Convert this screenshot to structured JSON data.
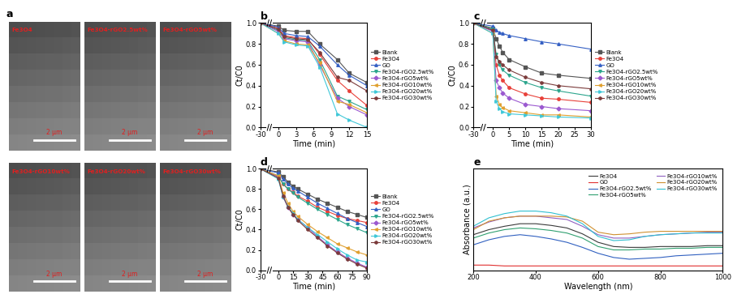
{
  "images": {
    "label": "a",
    "tiles": [
      {
        "label": "Fe3O4",
        "scale_bar": "2 μm"
      },
      {
        "label": "Fe3O4-rGO2.5wt%",
        "scale_bar": "2 μm"
      },
      {
        "label": "Fe3O4-rGO5wt%",
        "scale_bar": "2 μm"
      },
      {
        "label": "Fe3O4-rGO10wt%",
        "scale_bar": "2 μm"
      },
      {
        "label": "Fe3O4-rGO20wt%",
        "scale_bar": "2 μm"
      },
      {
        "label": "Fe3O4-rGO30wt%",
        "scale_bar": "2 μm"
      }
    ]
  },
  "chart_data": [
    {
      "type": "line",
      "title": "b",
      "x_label": "Time (min)",
      "y_label": "Ct/C0",
      "x": [
        -30,
        0,
        1,
        3,
        5,
        7,
        10,
        12,
        15
      ],
      "xlim": [
        -30,
        15
      ],
      "xticks": [
        -30,
        0,
        3,
        6,
        9,
        12,
        15
      ],
      "ylim": [
        0.0,
        1.0
      ],
      "yticks": [
        0.0,
        0.2,
        0.4,
        0.6,
        0.8,
        1.0
      ],
      "legend": "right",
      "series": [
        {
          "name": "Blank",
          "color": "#555555",
          "marker": "square",
          "values": [
            1.0,
            0.97,
            0.93,
            0.92,
            0.92,
            0.8,
            0.65,
            0.52,
            0.43
          ]
        },
        {
          "name": "Fe3O4",
          "color": "#e8413a",
          "marker": "circle",
          "values": [
            1.0,
            0.95,
            0.88,
            0.86,
            0.85,
            0.7,
            0.45,
            0.35,
            0.21
          ]
        },
        {
          "name": "GO",
          "color": "#3560c4",
          "marker": "triangle_up",
          "values": [
            1.0,
            0.96,
            0.9,
            0.88,
            0.87,
            0.78,
            0.6,
            0.5,
            0.4
          ]
        },
        {
          "name": "Fe3O4-rGO2.5wt%",
          "color": "#2ca58d",
          "marker": "triangle_down",
          "values": [
            1.0,
            0.93,
            0.86,
            0.84,
            0.83,
            0.65,
            0.3,
            0.25,
            0.17
          ]
        },
        {
          "name": "Fe3O4-rGO5wt%",
          "color": "#9b59d0",
          "marker": "diamond",
          "values": [
            1.0,
            0.92,
            0.85,
            0.83,
            0.82,
            0.6,
            0.28,
            0.2,
            0.12
          ]
        },
        {
          "name": "Fe3O4-rGO10wt%",
          "color": "#e0a030",
          "marker": "triangle_left",
          "values": [
            1.0,
            0.9,
            0.83,
            0.8,
            0.79,
            0.62,
            0.25,
            0.22,
            0.14
          ]
        },
        {
          "name": "Fe3O4-rGO20wt%",
          "color": "#40c8d8",
          "marker": "triangle_right",
          "values": [
            1.0,
            0.9,
            0.82,
            0.79,
            0.78,
            0.58,
            0.13,
            0.07,
            0.0
          ]
        },
        {
          "name": "Fe3O4-rGO30wt%",
          "color": "#7b3b3b",
          "marker": "hexagon",
          "values": [
            1.0,
            0.94,
            0.87,
            0.85,
            0.84,
            0.72,
            0.48,
            0.45,
            0.35
          ]
        }
      ]
    },
    {
      "type": "line",
      "title": "c",
      "x_label": "Time (min)",
      "y_label": "Ct/C0",
      "x": [
        -30,
        0,
        1,
        2,
        3,
        5,
        10,
        15,
        20,
        30
      ],
      "xlim": [
        -30,
        30
      ],
      "xticks": [
        -30,
        0,
        5,
        10,
        15,
        20,
        25,
        30
      ],
      "ylim": [
        0.0,
        1.0
      ],
      "yticks": [
        0.0,
        0.2,
        0.4,
        0.6,
        0.8,
        1.0
      ],
      "legend": "right",
      "series": [
        {
          "name": "Blank",
          "color": "#555555",
          "marker": "square",
          "values": [
            1.0,
            0.95,
            0.85,
            0.78,
            0.72,
            0.65,
            0.58,
            0.52,
            0.5,
            0.47
          ]
        },
        {
          "name": "Fe3O4",
          "color": "#e8413a",
          "marker": "circle",
          "values": [
            1.0,
            0.93,
            0.6,
            0.5,
            0.45,
            0.38,
            0.32,
            0.28,
            0.27,
            0.24
          ]
        },
        {
          "name": "GO",
          "color": "#3560c4",
          "marker": "triangle_up",
          "values": [
            1.0,
            0.97,
            0.93,
            0.91,
            0.9,
            0.88,
            0.85,
            0.82,
            0.8,
            0.75
          ]
        },
        {
          "name": "Fe3O4-rGO2.5wt%",
          "color": "#2ca58d",
          "marker": "triangle_down",
          "values": [
            1.0,
            0.94,
            0.7,
            0.6,
            0.55,
            0.5,
            0.43,
            0.38,
            0.35,
            0.3
          ]
        },
        {
          "name": "Fe3O4-rGO5wt%",
          "color": "#9b59d0",
          "marker": "diamond",
          "values": [
            1.0,
            0.92,
            0.45,
            0.38,
            0.33,
            0.28,
            0.22,
            0.2,
            0.18,
            0.16
          ]
        },
        {
          "name": "Fe3O4-rGO10wt%",
          "color": "#e0a030",
          "marker": "triangle_left",
          "values": [
            1.0,
            0.9,
            0.3,
            0.22,
            0.19,
            0.16,
            0.14,
            0.12,
            0.12,
            0.1
          ]
        },
        {
          "name": "Fe3O4-rGO20wt%",
          "color": "#40c8d8",
          "marker": "triangle_right",
          "values": [
            1.0,
            0.9,
            0.25,
            0.18,
            0.15,
            0.13,
            0.12,
            0.11,
            0.1,
            0.09
          ]
        },
        {
          "name": "Fe3O4-rGO30wt%",
          "color": "#7b3b3b",
          "marker": "hexagon",
          "values": [
            1.0,
            0.93,
            0.68,
            0.63,
            0.6,
            0.55,
            0.48,
            0.43,
            0.4,
            0.37
          ]
        }
      ]
    },
    {
      "type": "line",
      "title": "d",
      "x_label": "Time (min)",
      "y_label": "Ct/C0",
      "x": [
        -30,
        0,
        5,
        10,
        15,
        20,
        30,
        40,
        50,
        60,
        70,
        80,
        90
      ],
      "xlim": [
        -30,
        90
      ],
      "xticks": [
        -30,
        0,
        15,
        30,
        45,
        60,
        75,
        90
      ],
      "ylim": [
        0.0,
        1.0
      ],
      "yticks": [
        0.0,
        0.2,
        0.4,
        0.6,
        0.8,
        1.0
      ],
      "legend": "right",
      "series": [
        {
          "name": "Blank",
          "color": "#555555",
          "marker": "square",
          "values": [
            1.0,
            0.97,
            0.92,
            0.87,
            0.83,
            0.8,
            0.75,
            0.7,
            0.66,
            0.62,
            0.58,
            0.55,
            0.52
          ]
        },
        {
          "name": "Fe3O4",
          "color": "#e8413a",
          "marker": "circle",
          "values": [
            1.0,
            0.93,
            0.85,
            0.8,
            0.77,
            0.73,
            0.68,
            0.62,
            0.58,
            0.54,
            0.51,
            0.49,
            0.47
          ]
        },
        {
          "name": "GO",
          "color": "#3560c4",
          "marker": "triangle_up",
          "values": [
            1.0,
            0.96,
            0.9,
            0.85,
            0.81,
            0.78,
            0.72,
            0.66,
            0.61,
            0.56,
            0.51,
            0.47,
            0.43
          ]
        },
        {
          "name": "Fe3O4-rGO2.5wt%",
          "color": "#2ca58d",
          "marker": "triangle_down",
          "values": [
            1.0,
            0.93,
            0.85,
            0.8,
            0.76,
            0.72,
            0.66,
            0.6,
            0.55,
            0.5,
            0.45,
            0.41,
            0.37
          ]
        },
        {
          "name": "Fe3O4-rGO5wt%",
          "color": "#9b59d0",
          "marker": "diamond",
          "values": [
            1.0,
            0.92,
            0.72,
            0.62,
            0.55,
            0.5,
            0.42,
            0.33,
            0.25,
            0.18,
            0.12,
            0.07,
            0.03
          ]
        },
        {
          "name": "Fe3O4-rGO10wt%",
          "color": "#e0a030",
          "marker": "triangle_left",
          "values": [
            1.0,
            0.93,
            0.76,
            0.66,
            0.58,
            0.53,
            0.45,
            0.38,
            0.32,
            0.26,
            0.22,
            0.18,
            0.15
          ]
        },
        {
          "name": "Fe3O4-rGO20wt%",
          "color": "#40c8d8",
          "marker": "triangle_right",
          "values": [
            1.0,
            0.9,
            0.72,
            0.63,
            0.56,
            0.5,
            0.42,
            0.35,
            0.28,
            0.21,
            0.15,
            0.1,
            0.08
          ]
        },
        {
          "name": "Fe3O4-rGO30wt%",
          "color": "#7b3b3b",
          "marker": "hexagon",
          "values": [
            1.0,
            0.91,
            0.73,
            0.62,
            0.55,
            0.49,
            0.4,
            0.32,
            0.24,
            0.17,
            0.11,
            0.06,
            0.02
          ]
        }
      ]
    },
    {
      "type": "line",
      "title": "e",
      "x_label": "Wavelength (nm)",
      "y_label": "Absorbance (a.u.)",
      "x": [
        200,
        250,
        300,
        350,
        400,
        450,
        500,
        550,
        600,
        650,
        700,
        750,
        800,
        850,
        900,
        950,
        1000
      ],
      "xlim": [
        200,
        1000
      ],
      "xticks": [
        200,
        400,
        600,
        800,
        1000
      ],
      "ylim": [
        0,
        1.2
      ],
      "tick_labels": "x",
      "legend": "upper right",
      "series": [
        {
          "name": "Fe3O4",
          "color": "#3a3a3a",
          "values": [
            0.42,
            0.48,
            0.52,
            0.55,
            0.55,
            0.53,
            0.5,
            0.43,
            0.33,
            0.28,
            0.27,
            0.27,
            0.28,
            0.28,
            0.28,
            0.29,
            0.29
          ]
        },
        {
          "name": "GO",
          "color": "#e03030",
          "values": [
            0.06,
            0.06,
            0.05,
            0.05,
            0.05,
            0.05,
            0.05,
            0.05,
            0.05,
            0.05,
            0.05,
            0.05,
            0.05,
            0.05,
            0.05,
            0.05,
            0.05
          ]
        },
        {
          "name": "Fe3O4-rGO2.5wt%",
          "color": "#3060c0",
          "values": [
            0.3,
            0.36,
            0.4,
            0.42,
            0.4,
            0.37,
            0.33,
            0.27,
            0.2,
            0.15,
            0.13,
            0.14,
            0.15,
            0.17,
            0.18,
            0.19,
            0.2
          ]
        },
        {
          "name": "Fe3O4-rGO5wt%",
          "color": "#30a070",
          "values": [
            0.38,
            0.44,
            0.48,
            0.5,
            0.49,
            0.47,
            0.44,
            0.38,
            0.28,
            0.24,
            0.24,
            0.25,
            0.25,
            0.26,
            0.26,
            0.27,
            0.27
          ]
        },
        {
          "name": "Fe3O4-rGO10wt%",
          "color": "#9060c0",
          "values": [
            0.5,
            0.57,
            0.62,
            0.64,
            0.64,
            0.62,
            0.6,
            0.52,
            0.42,
            0.38,
            0.38,
            0.4,
            0.42,
            0.43,
            0.44,
            0.45,
            0.45
          ]
        },
        {
          "name": "Fe3O4-rGO20wt%",
          "color": "#d09030",
          "values": [
            0.48,
            0.58,
            0.62,
            0.64,
            0.64,
            0.64,
            0.63,
            0.58,
            0.45,
            0.42,
            0.43,
            0.45,
            0.46,
            0.46,
            0.46,
            0.46,
            0.46
          ]
        },
        {
          "name": "Fe3O4-rGO30wt%",
          "color": "#30c0d0",
          "values": [
            0.52,
            0.62,
            0.67,
            0.7,
            0.7,
            0.68,
            0.64,
            0.55,
            0.4,
            0.35,
            0.36,
            0.4,
            0.42,
            0.43,
            0.44,
            0.44,
            0.44
          ]
        }
      ]
    }
  ]
}
